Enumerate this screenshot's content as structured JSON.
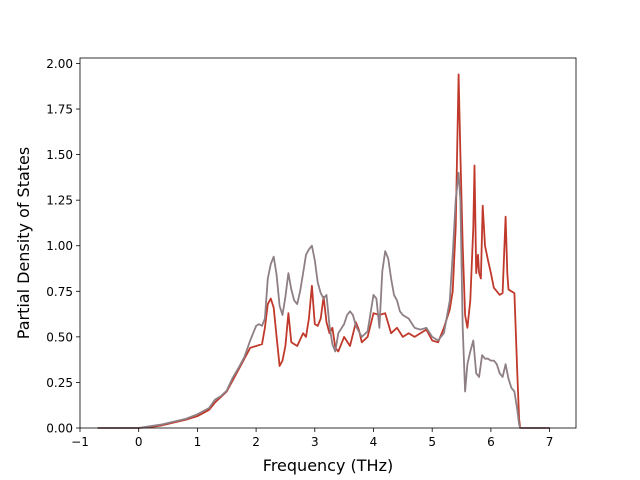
{
  "chart_data": {
    "type": "line",
    "title": "",
    "xlabel": "Frequency (THz)",
    "ylabel": "Partial Density of States",
    "xlim": [
      -1.0,
      7.45
    ],
    "ylim": [
      0.0,
      2.03
    ],
    "xticks": [
      -1,
      0,
      1,
      2,
      3,
      4,
      5,
      6,
      7
    ],
    "yticks": [
      0.0,
      0.25,
      0.5,
      0.75,
      1.0,
      1.25,
      1.5,
      1.75,
      2.0
    ],
    "xtick_labels": [
      "−1",
      "0",
      "1",
      "2",
      "3",
      "4",
      "5",
      "6",
      "7"
    ],
    "ytick_labels": [
      "0.00",
      "0.25",
      "0.50",
      "0.75",
      "1.00",
      "1.25",
      "1.50",
      "1.75",
      "2.00"
    ],
    "grid": false,
    "legend": "none",
    "series": [
      {
        "color": "#c0392b",
        "x": [
          -0.7,
          -0.3,
          0.0,
          0.2,
          0.4,
          0.6,
          0.8,
          1.0,
          1.2,
          1.3,
          1.4,
          1.5,
          1.6,
          1.7,
          1.8,
          1.9,
          2.0,
          2.1,
          2.15,
          2.2,
          2.25,
          2.3,
          2.35,
          2.4,
          2.45,
          2.5,
          2.55,
          2.6,
          2.7,
          2.8,
          2.85,
          2.9,
          2.95,
          3.0,
          3.05,
          3.1,
          3.15,
          3.2,
          3.25,
          3.3,
          3.35,
          3.4,
          3.5,
          3.6,
          3.7,
          3.75,
          3.8,
          3.9,
          4.0,
          4.1,
          4.2,
          4.3,
          4.4,
          4.5,
          4.6,
          4.7,
          4.8,
          4.9,
          5.0,
          5.1,
          5.2,
          5.3,
          5.35,
          5.4,
          5.45,
          5.48,
          5.52,
          5.56,
          5.6,
          5.65,
          5.7,
          5.72,
          5.75,
          5.78,
          5.8,
          5.83,
          5.86,
          5.9,
          5.95,
          6.0,
          6.05,
          6.1,
          6.15,
          6.2,
          6.25,
          6.28,
          6.3,
          6.35,
          6.4,
          6.45,
          6.48,
          6.5,
          6.55,
          6.6,
          7.0
        ],
        "y": [
          0.0,
          0.0,
          0.0,
          0.005,
          0.015,
          0.03,
          0.045,
          0.065,
          0.1,
          0.14,
          0.17,
          0.2,
          0.26,
          0.32,
          0.38,
          0.44,
          0.45,
          0.46,
          0.55,
          0.68,
          0.71,
          0.66,
          0.5,
          0.34,
          0.37,
          0.45,
          0.63,
          0.47,
          0.45,
          0.52,
          0.5,
          0.6,
          0.78,
          0.57,
          0.56,
          0.6,
          0.72,
          0.58,
          0.52,
          0.55,
          0.44,
          0.42,
          0.5,
          0.45,
          0.58,
          0.54,
          0.47,
          0.5,
          0.63,
          0.62,
          0.63,
          0.52,
          0.55,
          0.5,
          0.52,
          0.5,
          0.52,
          0.54,
          0.48,
          0.47,
          0.55,
          0.65,
          0.75,
          1.1,
          1.94,
          1.5,
          1.0,
          0.62,
          0.55,
          0.7,
          1.1,
          1.44,
          0.85,
          0.95,
          0.85,
          0.82,
          1.22,
          1.0,
          0.92,
          0.85,
          0.77,
          0.75,
          0.73,
          0.74,
          1.16,
          0.85,
          0.76,
          0.75,
          0.74,
          0.3,
          0.05,
          0.0,
          0.0,
          0.0,
          0.0
        ]
      },
      {
        "color": "#8e7f85",
        "x": [
          -0.7,
          -0.3,
          0.0,
          0.2,
          0.4,
          0.6,
          0.8,
          1.0,
          1.2,
          1.3,
          1.4,
          1.5,
          1.6,
          1.7,
          1.8,
          1.9,
          2.0,
          2.05,
          2.1,
          2.15,
          2.2,
          2.25,
          2.3,
          2.35,
          2.4,
          2.45,
          2.5,
          2.55,
          2.6,
          2.65,
          2.7,
          2.75,
          2.8,
          2.85,
          2.9,
          2.95,
          3.0,
          3.05,
          3.1,
          3.15,
          3.2,
          3.25,
          3.3,
          3.35,
          3.4,
          3.5,
          3.55,
          3.6,
          3.65,
          3.7,
          3.8,
          3.9,
          4.0,
          4.05,
          4.1,
          4.15,
          4.2,
          4.25,
          4.3,
          4.35,
          4.4,
          4.45,
          4.5,
          4.6,
          4.7,
          4.8,
          4.9,
          5.0,
          5.1,
          5.2,
          5.3,
          5.35,
          5.4,
          5.45,
          5.48,
          5.52,
          5.56,
          5.6,
          5.65,
          5.7,
          5.75,
          5.8,
          5.85,
          5.9,
          5.95,
          6.0,
          6.05,
          6.1,
          6.15,
          6.2,
          6.25,
          6.3,
          6.35,
          6.4,
          6.45,
          6.48,
          6.5,
          6.55,
          6.6,
          7.0
        ],
        "y": [
          0.0,
          0.0,
          0.0,
          0.01,
          0.02,
          0.035,
          0.05,
          0.075,
          0.11,
          0.155,
          0.175,
          0.205,
          0.275,
          0.33,
          0.39,
          0.48,
          0.56,
          0.57,
          0.56,
          0.6,
          0.82,
          0.9,
          0.94,
          0.84,
          0.67,
          0.62,
          0.72,
          0.85,
          0.76,
          0.7,
          0.68,
          0.75,
          0.85,
          0.95,
          0.98,
          1.0,
          0.92,
          0.8,
          0.74,
          0.71,
          0.73,
          0.56,
          0.46,
          0.42,
          0.52,
          0.57,
          0.62,
          0.64,
          0.62,
          0.56,
          0.5,
          0.53,
          0.73,
          0.71,
          0.55,
          0.86,
          0.97,
          0.93,
          0.82,
          0.73,
          0.7,
          0.64,
          0.62,
          0.6,
          0.55,
          0.54,
          0.55,
          0.5,
          0.48,
          0.52,
          0.7,
          0.95,
          1.25,
          1.4,
          1.25,
          0.55,
          0.2,
          0.35,
          0.42,
          0.48,
          0.3,
          0.28,
          0.4,
          0.38,
          0.38,
          0.37,
          0.37,
          0.35,
          0.3,
          0.28,
          0.35,
          0.27,
          0.22,
          0.2,
          0.1,
          0.02,
          0.0,
          0.0,
          0.0,
          0.0
        ]
      }
    ]
  }
}
